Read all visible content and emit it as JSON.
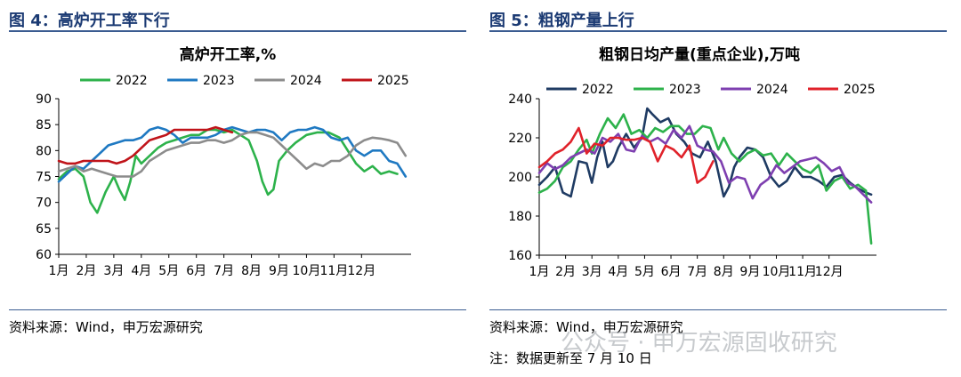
{
  "charts": [
    {
      "fig_title": "图 4：高炉开工率下行",
      "source": "资料来源：Wind，申万宏源研究",
      "chart_data": {
        "type": "line",
        "title": "高炉开工率,%",
        "xlabel": "",
        "ylabel": "",
        "ylim": [
          60,
          90
        ],
        "yticks": [
          60,
          65,
          70,
          75,
          80,
          85,
          90
        ],
        "x_range": [
          0,
          12.8
        ],
        "tick_labels": [
          "1月",
          "2月",
          "3月",
          "4月",
          "5月",
          "6月",
          "7月",
          "8月",
          "9月",
          "10月",
          "11月",
          "12月"
        ],
        "grid": false,
        "legend_position": "top",
        "series": [
          {
            "name": "2022",
            "color": "#2db24b",
            "x": [
              0,
              0.3,
              0.6,
              0.9,
              1.15,
              1.4,
              1.7,
              2.0,
              2.2,
              2.4,
              2.6,
              2.8,
              3.0,
              3.3,
              3.6,
              3.9,
              4.2,
              4.5,
              4.8,
              5.1,
              5.4,
              5.7,
              6.0,
              6.3,
              6.6,
              6.9,
              7.2,
              7.4,
              7.6,
              7.8,
              8.0,
              8.3,
              8.6,
              9.0,
              9.4,
              9.8,
              10.2,
              10.5,
              10.8,
              11.1,
              11.4,
              11.7,
              12.0,
              12.3
            ],
            "y": [
              74.5,
              76,
              76.5,
              75,
              70,
              68,
              72,
              75,
              72.5,
              70.5,
              74,
              79,
              77.5,
              79,
              80.5,
              81.5,
              82,
              82.5,
              83,
              83,
              84,
              84,
              83.5,
              84,
              83,
              82,
              78,
              74,
              71.5,
              72.5,
              78,
              80,
              81.5,
              83,
              83.5,
              83.5,
              82.5,
              80,
              77.5,
              76,
              77,
              75.5,
              76,
              75.5
            ]
          },
          {
            "name": "2023",
            "color": "#1f79c2",
            "x": [
              0,
              0.3,
              0.6,
              0.9,
              1.2,
              1.5,
              1.8,
              2.1,
              2.4,
              2.7,
              3.0,
              3.3,
              3.6,
              3.9,
              4.2,
              4.5,
              4.8,
              5.1,
              5.4,
              5.7,
              6.0,
              6.3,
              6.6,
              6.9,
              7.2,
              7.5,
              7.8,
              8.1,
              8.4,
              8.7,
              9.0,
              9.3,
              9.6,
              9.9,
              10.2,
              10.5,
              10.8,
              11.1,
              11.4,
              11.7,
              12.0,
              12.3,
              12.6
            ],
            "y": [
              74,
              75.5,
              77,
              76.5,
              78,
              79.5,
              81,
              81.5,
              82,
              82,
              82.5,
              84,
              84.5,
              84,
              83,
              81.5,
              82.5,
              82.5,
              82.5,
              83,
              84,
              84.5,
              84,
              83.5,
              84,
              84,
              83.5,
              82,
              83.5,
              84,
              84,
              84.5,
              84,
              82.5,
              82,
              82.5,
              80,
              79,
              80,
              80,
              78,
              77.5,
              75
            ]
          },
          {
            "name": "2024",
            "color": "#8c8c8c",
            "x": [
              0,
              0.3,
              0.6,
              0.9,
              1.2,
              1.5,
              1.8,
              2.1,
              2.4,
              2.7,
              3.0,
              3.3,
              3.6,
              3.9,
              4.2,
              4.5,
              4.8,
              5.1,
              5.4,
              5.7,
              6.0,
              6.3,
              6.6,
              6.9,
              7.2,
              7.5,
              7.8,
              8.1,
              8.4,
              8.7,
              9.0,
              9.3,
              9.6,
              9.9,
              10.2,
              10.5,
              10.8,
              11.1,
              11.4,
              11.7,
              12.0,
              12.3,
              12.6
            ],
            "y": [
              76,
              76.5,
              77,
              76,
              76.5,
              76,
              75.5,
              75,
              75,
              75,
              76,
              78,
              79,
              80,
              80.5,
              81,
              81.5,
              81.5,
              82,
              82,
              81.5,
              82,
              83,
              83.5,
              83.5,
              83,
              82.5,
              81,
              79.5,
              78,
              76.5,
              77.5,
              77,
              78,
              78,
              79,
              81,
              82,
              82.5,
              82.3,
              82,
              81.5,
              79
            ]
          },
          {
            "name": "2025",
            "color": "#c0141a",
            "x": [
              0,
              0.3,
              0.6,
              0.9,
              1.2,
              1.5,
              1.8,
              2.1,
              2.4,
              2.7,
              3.0,
              3.3,
              3.6,
              3.9,
              4.2,
              4.5,
              4.8,
              5.1,
              5.4,
              5.7,
              6.0,
              6.3
            ],
            "y": [
              78,
              77.5,
              77.5,
              78,
              78,
              78,
              78,
              77.5,
              78,
              79,
              80.5,
              82,
              82.5,
              83,
              84,
              84,
              84,
              84,
              84,
              84.5,
              84,
              83.5
            ]
          }
        ]
      }
    },
    {
      "fig_title": "图 5：粗钢产量上行",
      "source": "资料来源：Wind，申万宏源研究",
      "note": "注：数据更新至 7 月 10 日",
      "watermark": "公众号 · 申万宏源固收研究",
      "chart_data": {
        "type": "line",
        "title": "粗钢日均产量(重点企业),万吨",
        "xlabel": "",
        "ylabel": "",
        "ylim": [
          160,
          240
        ],
        "yticks": [
          160,
          180,
          200,
          220,
          240
        ],
        "x_range": [
          0,
          12.8
        ],
        "tick_labels": [
          "1月",
          "2月",
          "3月",
          "4月",
          "5月",
          "6月",
          "7月",
          "8月",
          "9月",
          "10月",
          "11月",
          "12月"
        ],
        "grid": false,
        "legend_position": "top",
        "series": [
          {
            "name": "2022",
            "color": "#1f3b63",
            "x": [
              0,
              0.3,
              0.6,
              0.9,
              1.2,
              1.5,
              1.8,
              2.0,
              2.2,
              2.4,
              2.6,
              2.8,
              3.0,
              3.3,
              3.6,
              3.9,
              4.1,
              4.3,
              4.6,
              4.9,
              5.2,
              5.5,
              5.8,
              6.1,
              6.4,
              6.7,
              7.0,
              7.2,
              7.4,
              7.6,
              7.9,
              8.2,
              8.5,
              8.8,
              9.1,
              9.4,
              9.7,
              10.0,
              10.3,
              10.6,
              10.9,
              11.2,
              11.5,
              11.8,
              12.1,
              12.4,
              12.6
            ],
            "y": [
              196,
              200,
              205,
              192,
              190,
              208,
              207,
              197,
              210,
              218,
              205,
              208,
              215,
              222,
              215,
              220,
              235,
              232,
              228,
              230,
              222,
              218,
              212,
              210,
              218,
              208,
              190,
              195,
              205,
              210,
              215,
              214,
              210,
              200,
              195,
              198,
              205,
              200,
              200,
              198,
              195,
              200,
              201,
              197,
              194,
              192,
              191
            ]
          },
          {
            "name": "2023",
            "color": "#2db24b",
            "x": [
              0,
              0.3,
              0.6,
              0.9,
              1.2,
              1.5,
              1.8,
              2.0,
              2.3,
              2.6,
              2.9,
              3.2,
              3.5,
              3.8,
              4.1,
              4.4,
              4.7,
              5.0,
              5.3,
              5.6,
              5.9,
              6.2,
              6.5,
              6.8,
              7.0,
              7.3,
              7.6,
              7.9,
              8.2,
              8.5,
              8.8,
              9.1,
              9.4,
              9.7,
              10.0,
              10.3,
              10.6,
              10.9,
              11.2,
              11.5,
              11.8,
              12.1,
              12.4,
              12.6
            ],
            "y": [
              192,
              194,
              198,
              205,
              208,
              214,
              219,
              212,
              222,
              230,
              225,
              232,
              222,
              224,
              220,
              225,
              223,
              226,
              226,
              222,
              222,
              226,
              225,
              214,
              220,
              212,
              208,
              212,
              214,
              211,
              212,
              206,
              212,
              208,
              204,
              202,
              206,
              193,
              198,
              200,
              194,
              196,
              193,
              166
            ]
          },
          {
            "name": "2024",
            "color": "#7e3fb0",
            "x": [
              0,
              0.3,
              0.6,
              0.9,
              1.2,
              1.5,
              1.8,
              2.1,
              2.4,
              2.7,
              3.0,
              3.3,
              3.6,
              3.9,
              4.2,
              4.5,
              4.8,
              5.1,
              5.4,
              5.7,
              6.0,
              6.3,
              6.6,
              6.9,
              7.2,
              7.5,
              7.8,
              8.1,
              8.4,
              8.7,
              9.0,
              9.3,
              9.6,
              9.9,
              10.2,
              10.5,
              10.8,
              11.1,
              11.4,
              11.7,
              12.0,
              12.3,
              12.6
            ],
            "y": [
              202,
              207,
              204,
              206,
              210,
              212,
              214,
              212,
              220,
              218,
              222,
              214,
              213,
              221,
              218,
              220,
              217,
              224,
              220,
              226,
              216,
              214,
              213,
              208,
              197,
              200,
              199,
              189,
              196,
              199,
              206,
              202,
              205,
              208,
              209,
              210,
              207,
              203,
              205,
              197,
              195,
              191,
              187
            ]
          },
          {
            "name": "2025",
            "color": "#e0222a",
            "x": [
              0,
              0.3,
              0.6,
              0.9,
              1.2,
              1.5,
              1.8,
              2.1,
              2.4,
              2.7,
              3.0,
              3.3,
              3.6,
              3.9,
              4.2,
              4.5,
              4.8,
              5.1,
              5.4,
              5.7,
              6.0,
              6.3,
              6.6
            ],
            "y": [
              205,
              208,
              212,
              214,
              218,
              225,
              212,
              217,
              216,
              220,
              220,
              219,
              219,
              220,
              218,
              208,
              216,
              214,
              210,
              216,
              197,
              200,
              208
            ]
          }
        ]
      }
    }
  ]
}
